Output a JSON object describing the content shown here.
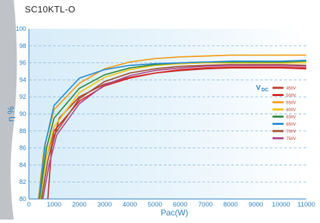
{
  "chart_data": {
    "type": "line",
    "title": "SC10KTL-O",
    "xlabel": "Pac(W)",
    "ylabel": "η %",
    "xlim": [
      0,
      11000
    ],
    "ylim": [
      80,
      100
    ],
    "xticks": [
      "0",
      "1000",
      "2000",
      "3000",
      "4000",
      "5000",
      "6000",
      "7000",
      "8000",
      "9000",
      "10000",
      "11000"
    ],
    "yticks": [
      "80",
      "82",
      "84",
      "86",
      "88",
      "90",
      "92",
      "94",
      "96",
      "98",
      "100"
    ],
    "grid": true,
    "legend_title": "V",
    "legend_title_sub": "DC",
    "legend_position": "right",
    "series": [
      {
        "name": "450V",
        "color": "#c0392b",
        "x": [
          750,
          900,
          1200,
          2000,
          3000,
          4000,
          5000,
          6000,
          7000,
          8000,
          9000,
          10000,
          11000
        ],
        "y": [
          80,
          86,
          89.5,
          92,
          93.5,
          94.3,
          94.8,
          95.1,
          95.3,
          95.4,
          95.4,
          95.4,
          95.3
        ]
      },
      {
        "name": "500V",
        "color": "#d62728",
        "x": [
          400,
          700,
          1000,
          2000,
          3000,
          4000,
          5000,
          6000,
          7000,
          8000,
          9000,
          10000,
          11000
        ],
        "y": [
          80,
          85,
          88,
          91.5,
          93.3,
          94.2,
          94.8,
          95.2,
          95.4,
          95.5,
          95.5,
          95.5,
          95.4
        ]
      },
      {
        "name": "550V",
        "color": "#f39c12",
        "x": [
          380,
          600,
          1000,
          2000,
          3000,
          4000,
          5000,
          6000,
          7000,
          8000,
          9000,
          10000,
          11000
        ],
        "y": [
          80,
          86,
          90.5,
          93.6,
          95.3,
          96.1,
          96.5,
          96.7,
          96.8,
          96.9,
          96.9,
          96.9,
          96.9
        ]
      },
      {
        "name": "600V",
        "color": "#f1c40f",
        "x": [
          450,
          700,
          1000,
          2000,
          3000,
          4000,
          5000,
          6000,
          7000,
          8000,
          9000,
          10000,
          11000
        ],
        "y": [
          80,
          85,
          88.5,
          92.5,
          94.3,
          95.2,
          95.7,
          95.9,
          96,
          96,
          96,
          96,
          96
        ]
      },
      {
        "name": "630V",
        "color": "#2e8b3d",
        "x": [
          420,
          700,
          1000,
          2000,
          3000,
          4000,
          5000,
          6000,
          7000,
          8000,
          9000,
          10000,
          11000
        ],
        "y": [
          80,
          86,
          89.5,
          93,
          94.6,
          95.4,
          95.8,
          96,
          96.1,
          96.1,
          96.1,
          96.1,
          96.2
        ]
      },
      {
        "name": "650V",
        "color": "#2a8fd0",
        "x": [
          400,
          650,
          1000,
          2000,
          3000,
          4000,
          5000,
          6000,
          7000,
          8000,
          9000,
          10000,
          11000
        ],
        "y": [
          80,
          86.5,
          91,
          94.2,
          95.2,
          95.7,
          95.9,
          96,
          96.1,
          96.2,
          96.2,
          96.2,
          96.3
        ]
      },
      {
        "name": "700V",
        "color": "#a0522d",
        "x": [
          500,
          750,
          1000,
          2000,
          3000,
          4000,
          5000,
          6000,
          7000,
          8000,
          9000,
          10000,
          11000
        ],
        "y": [
          80,
          84.5,
          87.5,
          91.8,
          93.8,
          94.8,
          95.3,
          95.6,
          95.7,
          95.8,
          95.8,
          95.8,
          95.7
        ]
      },
      {
        "name": "750V",
        "color": "#b04a8c",
        "x": [
          550,
          800,
          1100,
          2000,
          3000,
          4000,
          5000,
          6000,
          7000,
          8000,
          9000,
          10000,
          11000
        ],
        "y": [
          80,
          84,
          87.5,
          91.2,
          93.4,
          94.5,
          95.1,
          95.4,
          95.6,
          95.7,
          95.7,
          95.7,
          95.6
        ]
      }
    ]
  }
}
